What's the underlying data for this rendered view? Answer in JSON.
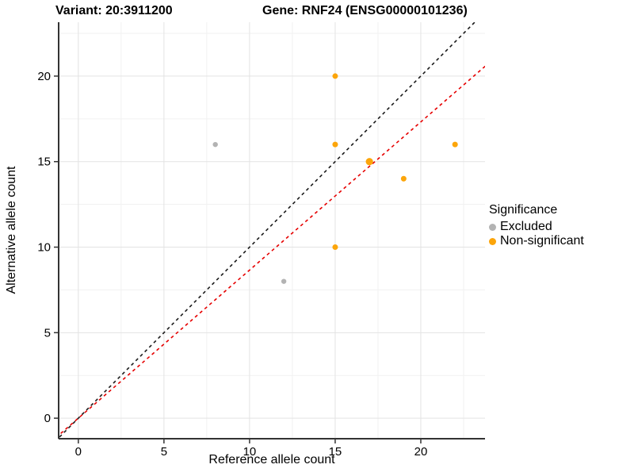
{
  "titles": {
    "variant": "Variant: 20:3911200",
    "gene": "Gene: RNF24 (ENSG00000101236)"
  },
  "chart_data": {
    "type": "scatter",
    "xlabel": "Reference allele count",
    "ylabel": "Alternative allele count",
    "xlim": [
      -1.15,
      23.75
    ],
    "ylim": [
      -1.2,
      23.15
    ],
    "xticks": [
      0,
      5,
      10,
      15,
      20
    ],
    "yticks": [
      0,
      5,
      10,
      15,
      20
    ],
    "minor_interval": 2.5,
    "grid": true,
    "legend_position": "right",
    "colors": {
      "excluded": "#B3B3B3",
      "non_significant": "#FCA50A",
      "identity_line": "#1A1A1A",
      "ratio_line": "#E60000",
      "grid_major": "#E3E3E3",
      "grid_minor": "#F1F1F1",
      "axis": "#333333",
      "text": "#000000"
    },
    "series": [
      {
        "name": "Excluded",
        "color": "#B3B3B3",
        "points": [
          {
            "x": 8,
            "y": 16,
            "r": 3.2
          },
          {
            "x": 12,
            "y": 8,
            "r": 3.2
          }
        ]
      },
      {
        "name": "Non-significant",
        "color": "#FCA50A",
        "points": [
          {
            "x": 15,
            "y": 20,
            "r": 3.5
          },
          {
            "x": 15,
            "y": 16,
            "r": 3.5
          },
          {
            "x": 17,
            "y": 15,
            "r": 4.6
          },
          {
            "x": 19,
            "y": 14,
            "r": 3.5
          },
          {
            "x": 22,
            "y": 16,
            "r": 3.5
          },
          {
            "x": 15,
            "y": 10,
            "r": 3.5
          }
        ]
      }
    ],
    "lines": [
      {
        "name": "identity-line",
        "slope": 1,
        "intercept": 0,
        "color": "#1A1A1A",
        "dash": "4 4"
      },
      {
        "name": "ratio-line",
        "slope": 0.866,
        "intercept": 0,
        "color": "#E60000",
        "dash": "4 4"
      }
    ],
    "legend": {
      "title": "Significance",
      "items": [
        {
          "label": "Excluded",
          "color": "#B3B3B3"
        },
        {
          "label": "Non-significant",
          "color": "#FCA50A"
        }
      ]
    }
  }
}
